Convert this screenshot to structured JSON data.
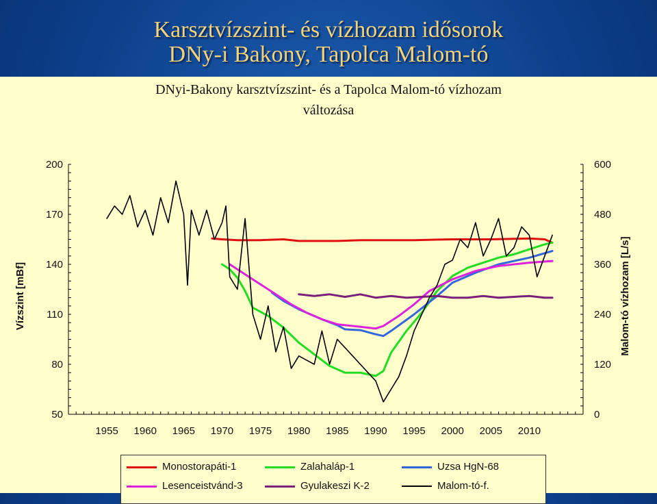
{
  "slide": {
    "title_line1": "Karsztvízszint- és vízhozam idősorok",
    "title_line2": "DNy-i Bakony, Tapolca Malom-tó"
  },
  "chart_data": {
    "type": "line",
    "title_line1": "DNyi-Bakony karsztvízszint- és a Tapolca Malom-tó vízhozam",
    "title_line2": "változása",
    "xlim": [
      1950,
      2017
    ],
    "x_ticks": [
      1955,
      1960,
      1965,
      1970,
      1975,
      1980,
      1985,
      1990,
      1995,
      2000,
      2005,
      2010
    ],
    "ylabel": "Vízszint [mBf]",
    "ylim": [
      50,
      200
    ],
    "y_ticks": [
      50,
      80,
      110,
      140,
      170,
      200
    ],
    "y2label": "Malom-tó vízhozam [L/s]",
    "y2lim": [
      0,
      600
    ],
    "y2_ticks": [
      0,
      120,
      240,
      360,
      480,
      600
    ],
    "grid": false,
    "legend_position": "bottom",
    "colors": {
      "background": "#ffffcc",
      "slide_background": "#0c3f8a",
      "title_gold": "#f2d27a"
    },
    "series": [
      {
        "name": "Monostorapáti-1",
        "color": "#e01010",
        "width": 3,
        "axis": "left",
        "x": [
          1968.7,
          1970,
          1972,
          1975,
          1978,
          1980,
          1983,
          1985,
          1988,
          1990,
          1993,
          1995,
          2000,
          2005,
          2010,
          2012,
          2013
        ],
        "y": [
          155.5,
          155,
          154.5,
          154.5,
          155,
          154,
          154,
          154,
          154.5,
          154.5,
          154.5,
          154.5,
          155,
          155,
          155.5,
          155,
          153
        ]
      },
      {
        "name": "Zalahaláp-1",
        "color": "#22dd22",
        "width": 3,
        "axis": "left",
        "x": [
          1970,
          1971,
          1972,
          1973,
          1974,
          1976,
          1978,
          1980,
          1982,
          1984,
          1986,
          1988,
          1990,
          1991,
          1992,
          1994,
          1996,
          1998,
          2000,
          2002,
          2004,
          2006,
          2008,
          2010,
          2012,
          2013
        ],
        "y": [
          140,
          137,
          132,
          124,
          114,
          109,
          102,
          93,
          86,
          79,
          75,
          75,
          73,
          76,
          87,
          100,
          111,
          124,
          133,
          138,
          141,
          144,
          146,
          149,
          152,
          153
        ]
      },
      {
        "name": "Uzsa HgN-68",
        "color": "#3366dd",
        "width": 3,
        "axis": "left",
        "x": [
          1976.5,
          1978,
          1980,
          1983,
          1985,
          1986,
          1988,
          1990,
          1991,
          1992,
          1995,
          1998,
          2000,
          2003,
          2006,
          2010,
          2013
        ],
        "y": [
          123,
          118,
          113,
          107,
          103.5,
          101,
          100.5,
          98,
          97,
          100,
          110,
          121,
          129,
          135,
          140,
          144,
          148
        ]
      },
      {
        "name": "Lesenceistvánd-3",
        "color": "#dd22dd",
        "width": 3,
        "axis": "left",
        "x": [
          1971,
          1973,
          1975,
          1977,
          1979,
          1981,
          1983,
          1985,
          1987,
          1989,
          1990,
          1991,
          1993,
          1995,
          1997,
          2000,
          2003,
          2006,
          2010,
          2013
        ],
        "y": [
          140,
          134,
          128,
          122,
          116,
          111,
          107,
          104,
          103,
          102,
          101.5,
          103,
          109,
          116,
          124,
          131,
          136,
          139,
          141,
          142
        ]
      },
      {
        "name": "Gyulakeszi K-2",
        "color": "#7a1f7a",
        "width": 3,
        "axis": "left",
        "x": [
          1980,
          1982,
          1984,
          1986,
          1988,
          1990,
          1992,
          1994,
          1996,
          1998,
          2000,
          2002,
          2004,
          2006,
          2008,
          2010,
          2012,
          2013
        ],
        "y": [
          122,
          121,
          122,
          120.5,
          122,
          120,
          121,
          120,
          120.5,
          121,
          120,
          120,
          121,
          120,
          120.5,
          121,
          120,
          120
        ]
      },
      {
        "name": "Malom-tó-f.",
        "color": "#000000",
        "width": 1.6,
        "axis": "right",
        "x": [
          1955,
          1956,
          1957,
          1958,
          1959,
          1960,
          1961,
          1962,
          1963,
          1964,
          1965,
          1965.5,
          1966,
          1967,
          1968,
          1969,
          1970,
          1970.5,
          1971,
          1972,
          1973,
          1974,
          1975,
          1976,
          1977,
          1978,
          1979,
          1980,
          1981,
          1982,
          1983,
          1984,
          1985,
          1986,
          1987,
          1988,
          1989,
          1990,
          1991,
          1992,
          1993,
          1994,
          1995,
          1996,
          1997,
          1998,
          1999,
          2000,
          2001,
          2002,
          2003,
          2004,
          2005,
          2006,
          2007,
          2008,
          2009,
          2010,
          2011,
          2012,
          2013
        ],
        "y": [
          470,
          500,
          480,
          525,
          450,
          490,
          430,
          520,
          460,
          560,
          480,
          310,
          490,
          430,
          490,
          420,
          460,
          500,
          330,
          300,
          470,
          240,
          180,
          260,
          150,
          210,
          110,
          140,
          130,
          120,
          200,
          120,
          180,
          160,
          140,
          120,
          100,
          80,
          30,
          60,
          90,
          140,
          200,
          240,
          280,
          310,
          360,
          370,
          420,
          400,
          460,
          380,
          420,
          470,
          380,
          400,
          450,
          430,
          330,
          380,
          430
        ]
      }
    ]
  }
}
